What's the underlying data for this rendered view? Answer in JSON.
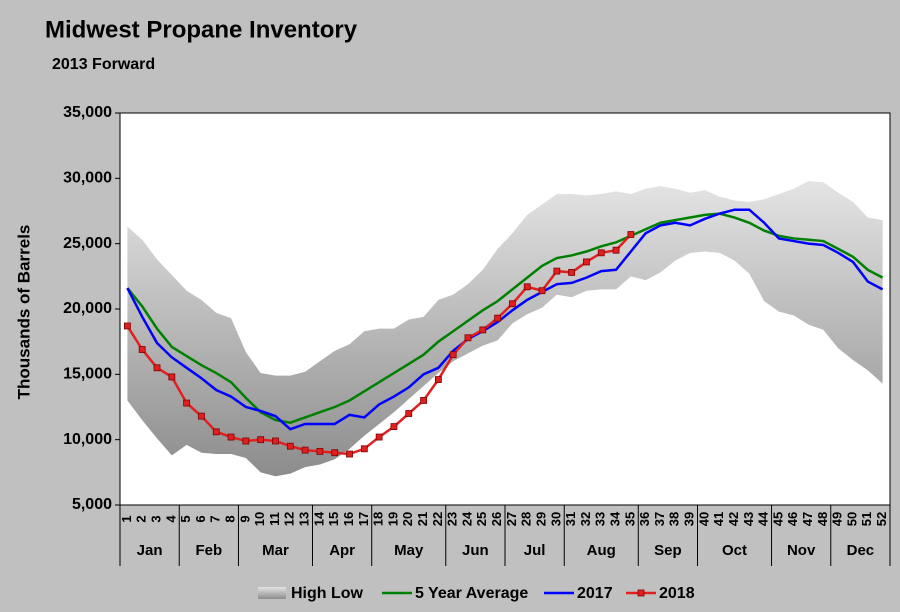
{
  "chart_data": {
    "type": "line",
    "title": "Midwest Propane Inventory",
    "subtitle": "2013 Forward",
    "y_label": "Thousands of Barrels",
    "categories": [
      "1",
      "2",
      "3",
      "4",
      "5",
      "6",
      "7",
      "8",
      "9",
      "10",
      "11",
      "12",
      "13",
      "14",
      "15",
      "16",
      "17",
      "18",
      "19",
      "20",
      "21",
      "22",
      "23",
      "24",
      "25",
      "26",
      "27",
      "28",
      "29",
      "30",
      "31",
      "32",
      "33",
      "34",
      "35",
      "36",
      "37",
      "38",
      "39",
      "40",
      "41",
      "42",
      "43",
      "44",
      "45",
      "46",
      "47",
      "48",
      "49",
      "50",
      "51",
      "52"
    ],
    "month_groups": [
      {
        "label": "Jan",
        "first": 1,
        "last": 4
      },
      {
        "label": "Feb",
        "first": 5,
        "last": 8
      },
      {
        "label": "Mar",
        "first": 9,
        "last": 13
      },
      {
        "label": "Apr",
        "first": 14,
        "last": 17
      },
      {
        "label": "May",
        "first": 18,
        "last": 22
      },
      {
        "label": "Jun",
        "first": 23,
        "last": 26
      },
      {
        "label": "Jul",
        "first": 27,
        "last": 30
      },
      {
        "label": "Aug",
        "first": 31,
        "last": 35
      },
      {
        "label": "Sep",
        "first": 36,
        "last": 39
      },
      {
        "label": "Oct",
        "first": 40,
        "last": 44
      },
      {
        "label": "Nov",
        "first": 45,
        "last": 48
      },
      {
        "label": "Dec",
        "first": 49,
        "last": 52
      }
    ],
    "ylim": [
      5000,
      35000
    ],
    "yticks": [
      {
        "value": 5000,
        "label": "5,000"
      },
      {
        "value": 10000,
        "label": "10,000"
      },
      {
        "value": 15000,
        "label": "15,000"
      },
      {
        "value": 20000,
        "label": "20,000"
      },
      {
        "value": 25000,
        "label": "25,000"
      },
      {
        "value": 30000,
        "label": "30,000"
      },
      {
        "value": 35000,
        "label": "35,000"
      }
    ],
    "series": [
      {
        "name": "High Low",
        "kind": "band",
        "color": "#a6a6a6",
        "high": [
          26300,
          25300,
          23800,
          22600,
          21400,
          20700,
          19700,
          19300,
          16700,
          15100,
          14900,
          14900,
          15200,
          16000,
          16800,
          17300,
          18300,
          18500,
          18500,
          19200,
          19400,
          20700,
          21100,
          21900,
          23000,
          24600,
          25800,
          27200,
          28000,
          28800,
          28800,
          28700,
          28800,
          29000,
          28800,
          29200,
          29400,
          29200,
          28900,
          29100,
          28600,
          28300,
          28200,
          28400,
          28800,
          29200,
          29800,
          29700,
          28900,
          28200,
          27000,
          26800
        ],
        "low": [
          13000,
          11500,
          10100,
          8800,
          9600,
          9000,
          8900,
          8900,
          8600,
          7500,
          7200,
          7400,
          7900,
          8100,
          8500,
          9300,
          10300,
          11200,
          12100,
          13100,
          14100,
          15100,
          16000,
          16600,
          17200,
          17600,
          18900,
          19600,
          20100,
          21100,
          20900,
          21400,
          21500,
          21500,
          22500,
          22200,
          22800,
          23700,
          24300,
          24400,
          24300,
          23700,
          22700,
          20600,
          19800,
          19500,
          18800,
          18400,
          17000,
          16100,
          15300,
          14300
        ]
      },
      {
        "name": "5 Year Average",
        "kind": "line",
        "color": "#008000",
        "values": [
          21600,
          20200,
          18500,
          17100,
          16400,
          15700,
          15100,
          14400,
          13200,
          12100,
          11500,
          11300,
          11700,
          12100,
          12500,
          13000,
          13700,
          14400,
          15100,
          15800,
          16500,
          17500,
          18300,
          19100,
          19900,
          20600,
          21500,
          22400,
          23300,
          23900,
          24100,
          24400,
          24800,
          25100,
          25600,
          26100,
          26600,
          26800,
          27000,
          27200,
          27300,
          27000,
          26600,
          26000,
          25600,
          25400,
          25300,
          25200,
          24600,
          24000,
          23000,
          22400
        ]
      },
      {
        "name": "2017",
        "kind": "line",
        "color": "#0000ff",
        "values": [
          21600,
          19400,
          17400,
          16300,
          15500,
          14700,
          13800,
          13300,
          12500,
          12200,
          11800,
          10800,
          11200,
          11200,
          11200,
          11900,
          11700,
          12700,
          13300,
          14000,
          15000,
          15500,
          16800,
          17700,
          18300,
          19000,
          19900,
          20700,
          21300,
          21900,
          22000,
          22400,
          22900,
          23000,
          24400,
          25800,
          26400,
          26600,
          26400,
          26900,
          27300,
          27600,
          27600,
          26600,
          25400,
          25200,
          25000,
          24900,
          24300,
          23600,
          22100,
          21500
        ]
      },
      {
        "name": "2018",
        "kind": "line",
        "color": "#e02020",
        "markers": true,
        "values": [
          18700,
          16900,
          15500,
          14800,
          12800,
          11800,
          10600,
          10200,
          9900,
          10000,
          9900,
          9500,
          9200,
          9100,
          9000,
          8900,
          9300,
          10200,
          11000,
          12000,
          13000,
          14600,
          16500,
          17800,
          18400,
          19300,
          20400,
          21700,
          21400,
          22900,
          22800,
          23600,
          24300,
          24500,
          25700,
          null,
          null,
          null,
          null,
          null,
          null,
          null,
          null,
          null,
          null,
          null,
          null,
          null,
          null,
          null,
          null,
          null
        ]
      }
    ]
  }
}
